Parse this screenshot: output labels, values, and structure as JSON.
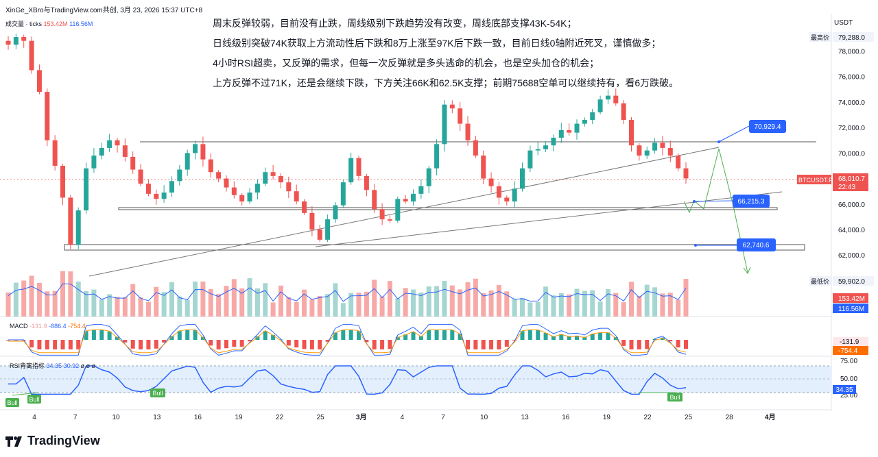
{
  "header": {
    "title_line": "XinGe_XBro与TradingView.com共创, 3月 23, 2026 15:37 UTC+8",
    "currency": "USDT"
  },
  "annotations": [
    "周末反弹较弱，目前没有止跌，周线级别下跌趋势没有改变，周线底部支撑43K-54K；",
    "日线级别突破74K获取上方流动性后下跌和8万上涨至97K后下跌一致，目前日线0轴附近死叉，谨慎做多；",
    "4小时RSI超卖，又反弹的需求，但每一次反弹就是多头逃命的机会，也是空头加仓的机会；",
    "上方反弹不过71K，还是会继续下跌，下方关注66K和62.5K支撑；前期75688空单可以继续持有，看6万跌破。"
  ],
  "volume_legend": {
    "label": "成交量 · ticks",
    "v1": "153.42M",
    "v2": "116.56M"
  },
  "macd_legend": {
    "label": "MACD",
    "v1": "-131.9",
    "v2": "-886.4",
    "v3": "-754.4"
  },
  "rsi_legend": {
    "label": "RSI背离指标",
    "v1": "34.35",
    "v2": "30.92",
    "v3": "ø ø ø"
  },
  "price_labels": {
    "high_label": "最高价",
    "high": "79,288.0",
    "low_label": "最低价",
    "low": "59,902.0",
    "symbol": "BTCUSDT.P",
    "last": "68,010.7",
    "countdown": "22:43",
    "vol1": "153.42M",
    "vol2": "116.56M",
    "macd1": "-131.9",
    "macd2": "-754.4",
    "rsi": "34.35"
  },
  "target_labels": [
    "70,929.4",
    "66,215.3",
    "62,740.6"
  ],
  "bull_label": "Bull",
  "footer_logo": "TradingView",
  "colors": {
    "up": "#26a69a",
    "down": "#ef5350",
    "blue": "#2962ff",
    "orange": "#ff9800",
    "green_path": "#4caf50"
  },
  "chart_data": {
    "type": "candlestick",
    "title": "BTCUSDT.P",
    "ylim": [
      59000,
      80500
    ],
    "y_ticks": [
      62000,
      64000,
      66000,
      68000,
      70000,
      72000,
      74000,
      76000,
      78000
    ],
    "y_tick_labels": [
      "62,000.0",
      "64,000.0",
      "66,000.0",
      "68,000.0",
      "70,000.0",
      "72,000.0",
      "74,000.0",
      "76,000.0",
      "78,000.0"
    ],
    "x_ticks": [
      "4",
      "7",
      "10",
      "13",
      "16",
      "19",
      "22",
      "25",
      "3月",
      "4",
      "7",
      "10",
      "13",
      "16",
      "19",
      "22",
      "25",
      "28",
      "4月"
    ],
    "close_series": [
      78500,
      79100,
      78800,
      76500,
      74800,
      71000,
      69000,
      66500,
      62800,
      65500,
      68800,
      69800,
      70400,
      71000,
      70600,
      69700,
      68700,
      67600,
      66800,
      66400,
      66900,
      67800,
      68700,
      70000,
      70700,
      69500,
      68500,
      68000,
      67300,
      66700,
      66200,
      66900,
      67600,
      68500,
      68200,
      67700,
      67000,
      66200,
      65300,
      64000,
      63200,
      64800,
      65900,
      67700,
      69600,
      68200,
      67100,
      65600,
      64800,
      64700,
      66400,
      66200,
      66800,
      67400,
      68800,
      70700,
      73800,
      73500,
      72300,
      71000,
      69800,
      68000,
      67400,
      66500,
      66200,
      67200,
      68800,
      70200,
      70300,
      70600,
      71200,
      71800,
      71600,
      72300,
      72600,
      73200,
      74200,
      74500,
      73900,
      72600,
      70600,
      69800,
      70200,
      70800,
      70400,
      69800,
      68800,
      68010
    ],
    "support_levels": [
      66215.3,
      62740.6
    ],
    "resistance_level": 70929.4,
    "targets": [
      70929.4,
      66215.3,
      62740.6
    ],
    "volume_ylim": [
      0,
      160
    ],
    "rsi_ticks": [
      25,
      50,
      75
    ],
    "rsi_last": 34.35
  }
}
